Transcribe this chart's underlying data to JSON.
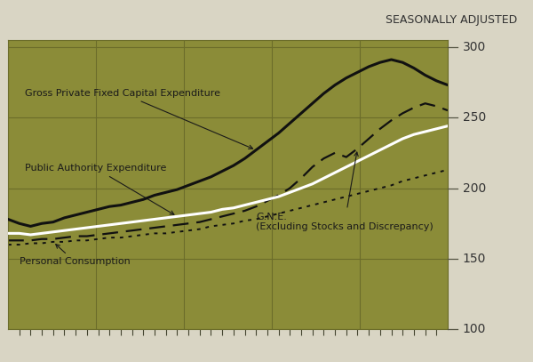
{
  "title": "SEASONALLY ADJUSTED",
  "background_color": "#8B8C38",
  "fig_bg_color": "#D9D5C4",
  "ylim": [
    100,
    305
  ],
  "yticks": [
    100,
    150,
    200,
    250,
    300
  ],
  "n_points": 40,
  "gross_private": [
    178,
    175,
    173,
    175,
    176,
    179,
    181,
    183,
    185,
    187,
    188,
    190,
    192,
    195,
    197,
    199,
    202,
    205,
    208,
    212,
    216,
    221,
    227,
    233,
    239,
    246,
    253,
    260,
    267,
    273,
    278,
    282,
    286,
    289,
    291,
    289,
    285,
    280,
    276,
    273
  ],
  "public_authority": [
    168,
    168,
    167,
    168,
    169,
    170,
    171,
    172,
    173,
    174,
    175,
    176,
    177,
    178,
    179,
    180,
    181,
    182,
    183,
    185,
    186,
    188,
    190,
    192,
    194,
    197,
    200,
    203,
    207,
    211,
    215,
    219,
    223,
    227,
    231,
    235,
    238,
    240,
    242,
    244
  ],
  "gne": [
    163,
    163,
    163,
    164,
    164,
    165,
    166,
    166,
    167,
    168,
    169,
    170,
    171,
    172,
    173,
    174,
    175,
    176,
    178,
    180,
    182,
    184,
    187,
    191,
    195,
    200,
    207,
    215,
    221,
    225,
    222,
    228,
    235,
    242,
    248,
    253,
    257,
    260,
    258,
    255
  ],
  "personal_consumption": [
    160,
    160,
    161,
    161,
    162,
    162,
    163,
    163,
    164,
    165,
    165,
    166,
    167,
    168,
    168,
    169,
    170,
    171,
    173,
    174,
    175,
    177,
    178,
    180,
    182,
    184,
    186,
    188,
    190,
    192,
    194,
    196,
    198,
    200,
    202,
    205,
    207,
    209,
    211,
    213
  ],
  "labels": {
    "gross_private": "Gross Private Fixed Capital Expenditure",
    "public_authority": "Public Authority Expenditure",
    "gne": "G.N.E.\n(Excluding Stocks and Discrepancy)",
    "personal_consumption": "Personal Consumption"
  },
  "annotation_color": "#1a1a1a",
  "text_color": "#2a2a2a",
  "grid_color": "#6B6C2A",
  "tick_color": "#444430",
  "line_colors": {
    "gross_private": "#111111",
    "public_authority": "#ffffff",
    "gne": "#111111",
    "personal_consumption": "#111111"
  },
  "n_xticks_major": 5,
  "n_xticks_minor": 40
}
